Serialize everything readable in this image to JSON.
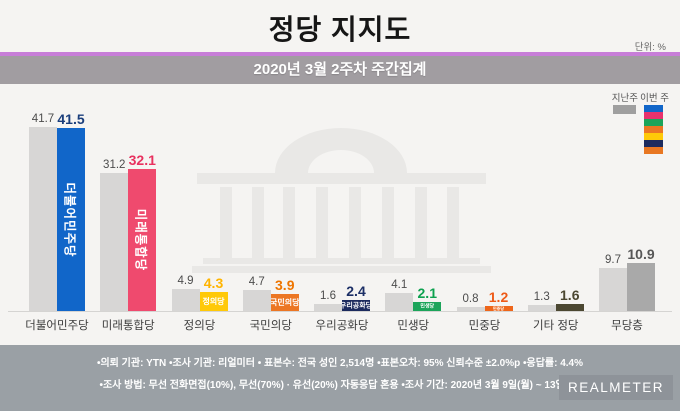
{
  "title": "정당 지지도",
  "unit_label": "단위: %",
  "subtitle": "2020년 3월 2주차 주간집계",
  "legend": {
    "last_week": "지난주",
    "this_week": "이번 주",
    "last_week_swatch_color": "#9f9f9f",
    "this_week_stack_colors": [
      "#1166c9",
      "#e8326e",
      "#1ca45a",
      "#ec7623",
      "#ffc908",
      "#1c2b5e",
      "#e87722"
    ]
  },
  "chart_data": {
    "type": "bar",
    "title": "정당 지지도",
    "subtitle": "2020년 3월 2주차 주간집계",
    "unit": "%",
    "categories": [
      "더불어민주당",
      "미래통합당",
      "정의당",
      "국민의당",
      "우리공화당",
      "민생당",
      "민중당",
      "기타 정당",
      "무당층"
    ],
    "series": [
      {
        "name": "지난주",
        "values": [
          41.7,
          31.2,
          4.9,
          4.7,
          1.6,
          4.1,
          0.8,
          1.3,
          9.7
        ]
      },
      {
        "name": "이번 주",
        "values": [
          41.5,
          32.1,
          4.3,
          3.9,
          2.4,
          2.1,
          1.2,
          1.6,
          10.9
        ]
      }
    ],
    "ylim": [
      0,
      45
    ],
    "grid": false,
    "legend_position": "top-right",
    "watermark": "national-assembly-building"
  },
  "parties": [
    {
      "name": "더불어민주당",
      "last": 41.7,
      "current": 41.5,
      "color": "#1166c9",
      "value_color": "#1a3e7c",
      "logo": "더불어민주당",
      "logo_style": "vertical"
    },
    {
      "name": "미래통합당",
      "last": 31.2,
      "current": 32.1,
      "color": "#ef4a6e",
      "value_color": "#e8315f",
      "logo": "미래통합당",
      "logo_style": "vertical"
    },
    {
      "name": "정의당",
      "last": 4.9,
      "current": 4.3,
      "color": "#ffc908",
      "value_color": "#ffb400",
      "logo": "정의당",
      "logo_style": "horizontal"
    },
    {
      "name": "국민의당",
      "last": 4.7,
      "current": 3.9,
      "color": "#ec7623",
      "value_color": "#ee7500",
      "logo": "국민의당",
      "logo_style": "horizontal"
    },
    {
      "name": "우리공화당",
      "last": 1.6,
      "current": 2.4,
      "color": "#1c2b5e",
      "value_color": "#1c2f66",
      "logo": "우리공화당",
      "logo_style": "horizontal"
    },
    {
      "name": "민생당",
      "last": 4.1,
      "current": 2.1,
      "color": "#1ca45a",
      "value_color": "#0da14f",
      "logo": "민생당",
      "logo_style": "horizontal"
    },
    {
      "name": "민중당",
      "last": 0.8,
      "current": 1.2,
      "color": "#ee661a",
      "value_color": "#ee5a17",
      "logo": "민중당",
      "logo_style": "horizontal"
    },
    {
      "name": "기타 정당",
      "last": 1.3,
      "current": 1.6,
      "color": "#4b4731",
      "value_color": "#4b4731",
      "logo": "",
      "logo_style": "none"
    },
    {
      "name": "무당층",
      "last": 9.7,
      "current": 10.9,
      "color": "#a9a9a9",
      "value_color": "#575757",
      "logo": "",
      "logo_style": "none"
    }
  ],
  "footer": {
    "line1": "•의뢰 기관: YTN  •조사 기관: 리얼미터 • 표본수: 전국 성인 2,514명  •표본오차: 95% 신뢰수준 ±2.0%p  •응답률: 4.4%",
    "line2": "•조사 방법: 무선 전화면접(10%), 무선(70%) · 유선(20%) 자동응답 혼용   •조사 기간: 2020년 3월 9일(월) ~ 13일(금)",
    "logo": "REALMETER"
  }
}
